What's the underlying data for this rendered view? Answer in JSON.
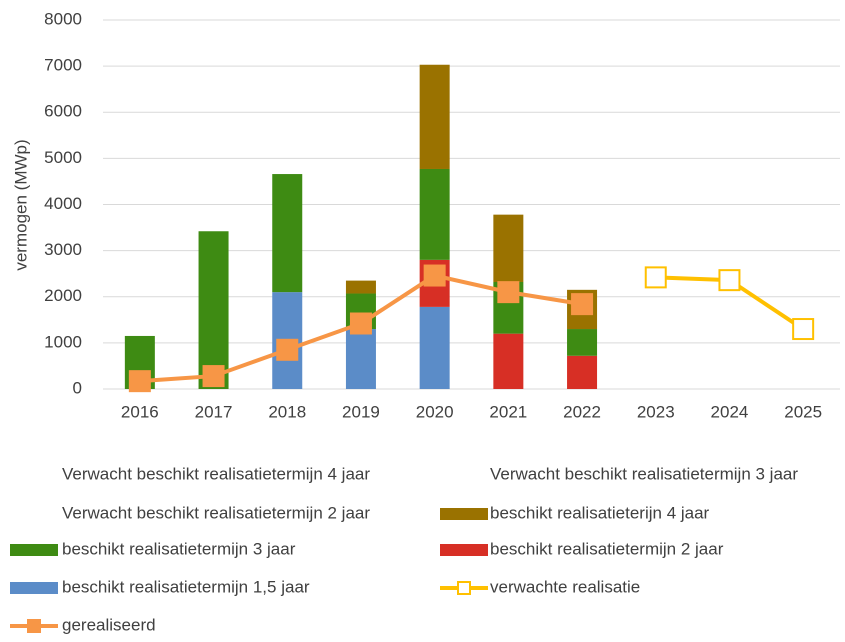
{
  "chart_data": {
    "type": "bar",
    "stacked": true,
    "legend": "bottom",
    "grid": true,
    "ylabel": "vermogen (MWp)",
    "categories": [
      "2016",
      "2017",
      "2018",
      "2019",
      "2020",
      "2021",
      "2022",
      "2023",
      "2024",
      "2025"
    ],
    "ylim": [
      0,
      8000
    ],
    "yticks": [
      0,
      1000,
      2000,
      3000,
      4000,
      5000,
      6000,
      7000,
      8000
    ],
    "series": [
      {
        "name": "Verwacht beschikt realisatietermijn 4 jaar",
        "color": "#ffffff",
        "kind": "bar",
        "values": [
          null,
          null,
          null,
          null,
          null,
          null,
          null,
          null,
          null,
          null
        ]
      },
      {
        "name": "Verwacht beschikt realisatietermijn 3 jaar",
        "color": "#ffffff",
        "kind": "bar",
        "values": [
          null,
          null,
          null,
          null,
          null,
          null,
          null,
          null,
          null,
          null
        ]
      },
      {
        "name": "Verwacht beschikt realisatietermijn 2 jaar",
        "color": "#ffffff",
        "kind": "bar",
        "values": [
          null,
          null,
          null,
          null,
          null,
          null,
          null,
          null,
          null,
          null
        ]
      },
      {
        "name": "beschikt realisatieterijn 4 jaar",
        "color": "#9a7200",
        "kind": "bar",
        "values": [
          null,
          null,
          null,
          280,
          2260,
          1460,
          850,
          null,
          null,
          null
        ]
      },
      {
        "name": "beschikt realisatietermijn 3 jaar",
        "color": "#3e8b13",
        "kind": "bar",
        "values": [
          1150,
          3420,
          2560,
          770,
          1970,
          1120,
          580,
          null,
          null,
          null
        ]
      },
      {
        "name": "beschikt realisatietermijn 2 jaar",
        "color": "#d72f25",
        "kind": "bar",
        "values": [
          null,
          null,
          null,
          null,
          1020,
          1200,
          720,
          null,
          null,
          null
        ]
      },
      {
        "name": "beschikt realisatietermijn 1,5 jaar",
        "color": "#5b8cc8",
        "kind": "bar",
        "values": [
          null,
          null,
          2100,
          1300,
          1780,
          null,
          null,
          null,
          null,
          null
        ]
      },
      {
        "name": "verwachte realisatie",
        "color": "#ffc000",
        "kind": "line",
        "marker": "hollow-square",
        "values": [
          null,
          null,
          null,
          null,
          null,
          null,
          null,
          2420,
          2360,
          1300
        ]
      },
      {
        "name": "gerealiseerd",
        "color": "#f79646",
        "kind": "line",
        "marker": "square",
        "values": [
          170,
          280,
          850,
          1420,
          2460,
          2100,
          1840,
          null,
          null,
          null
        ]
      }
    ]
  }
}
